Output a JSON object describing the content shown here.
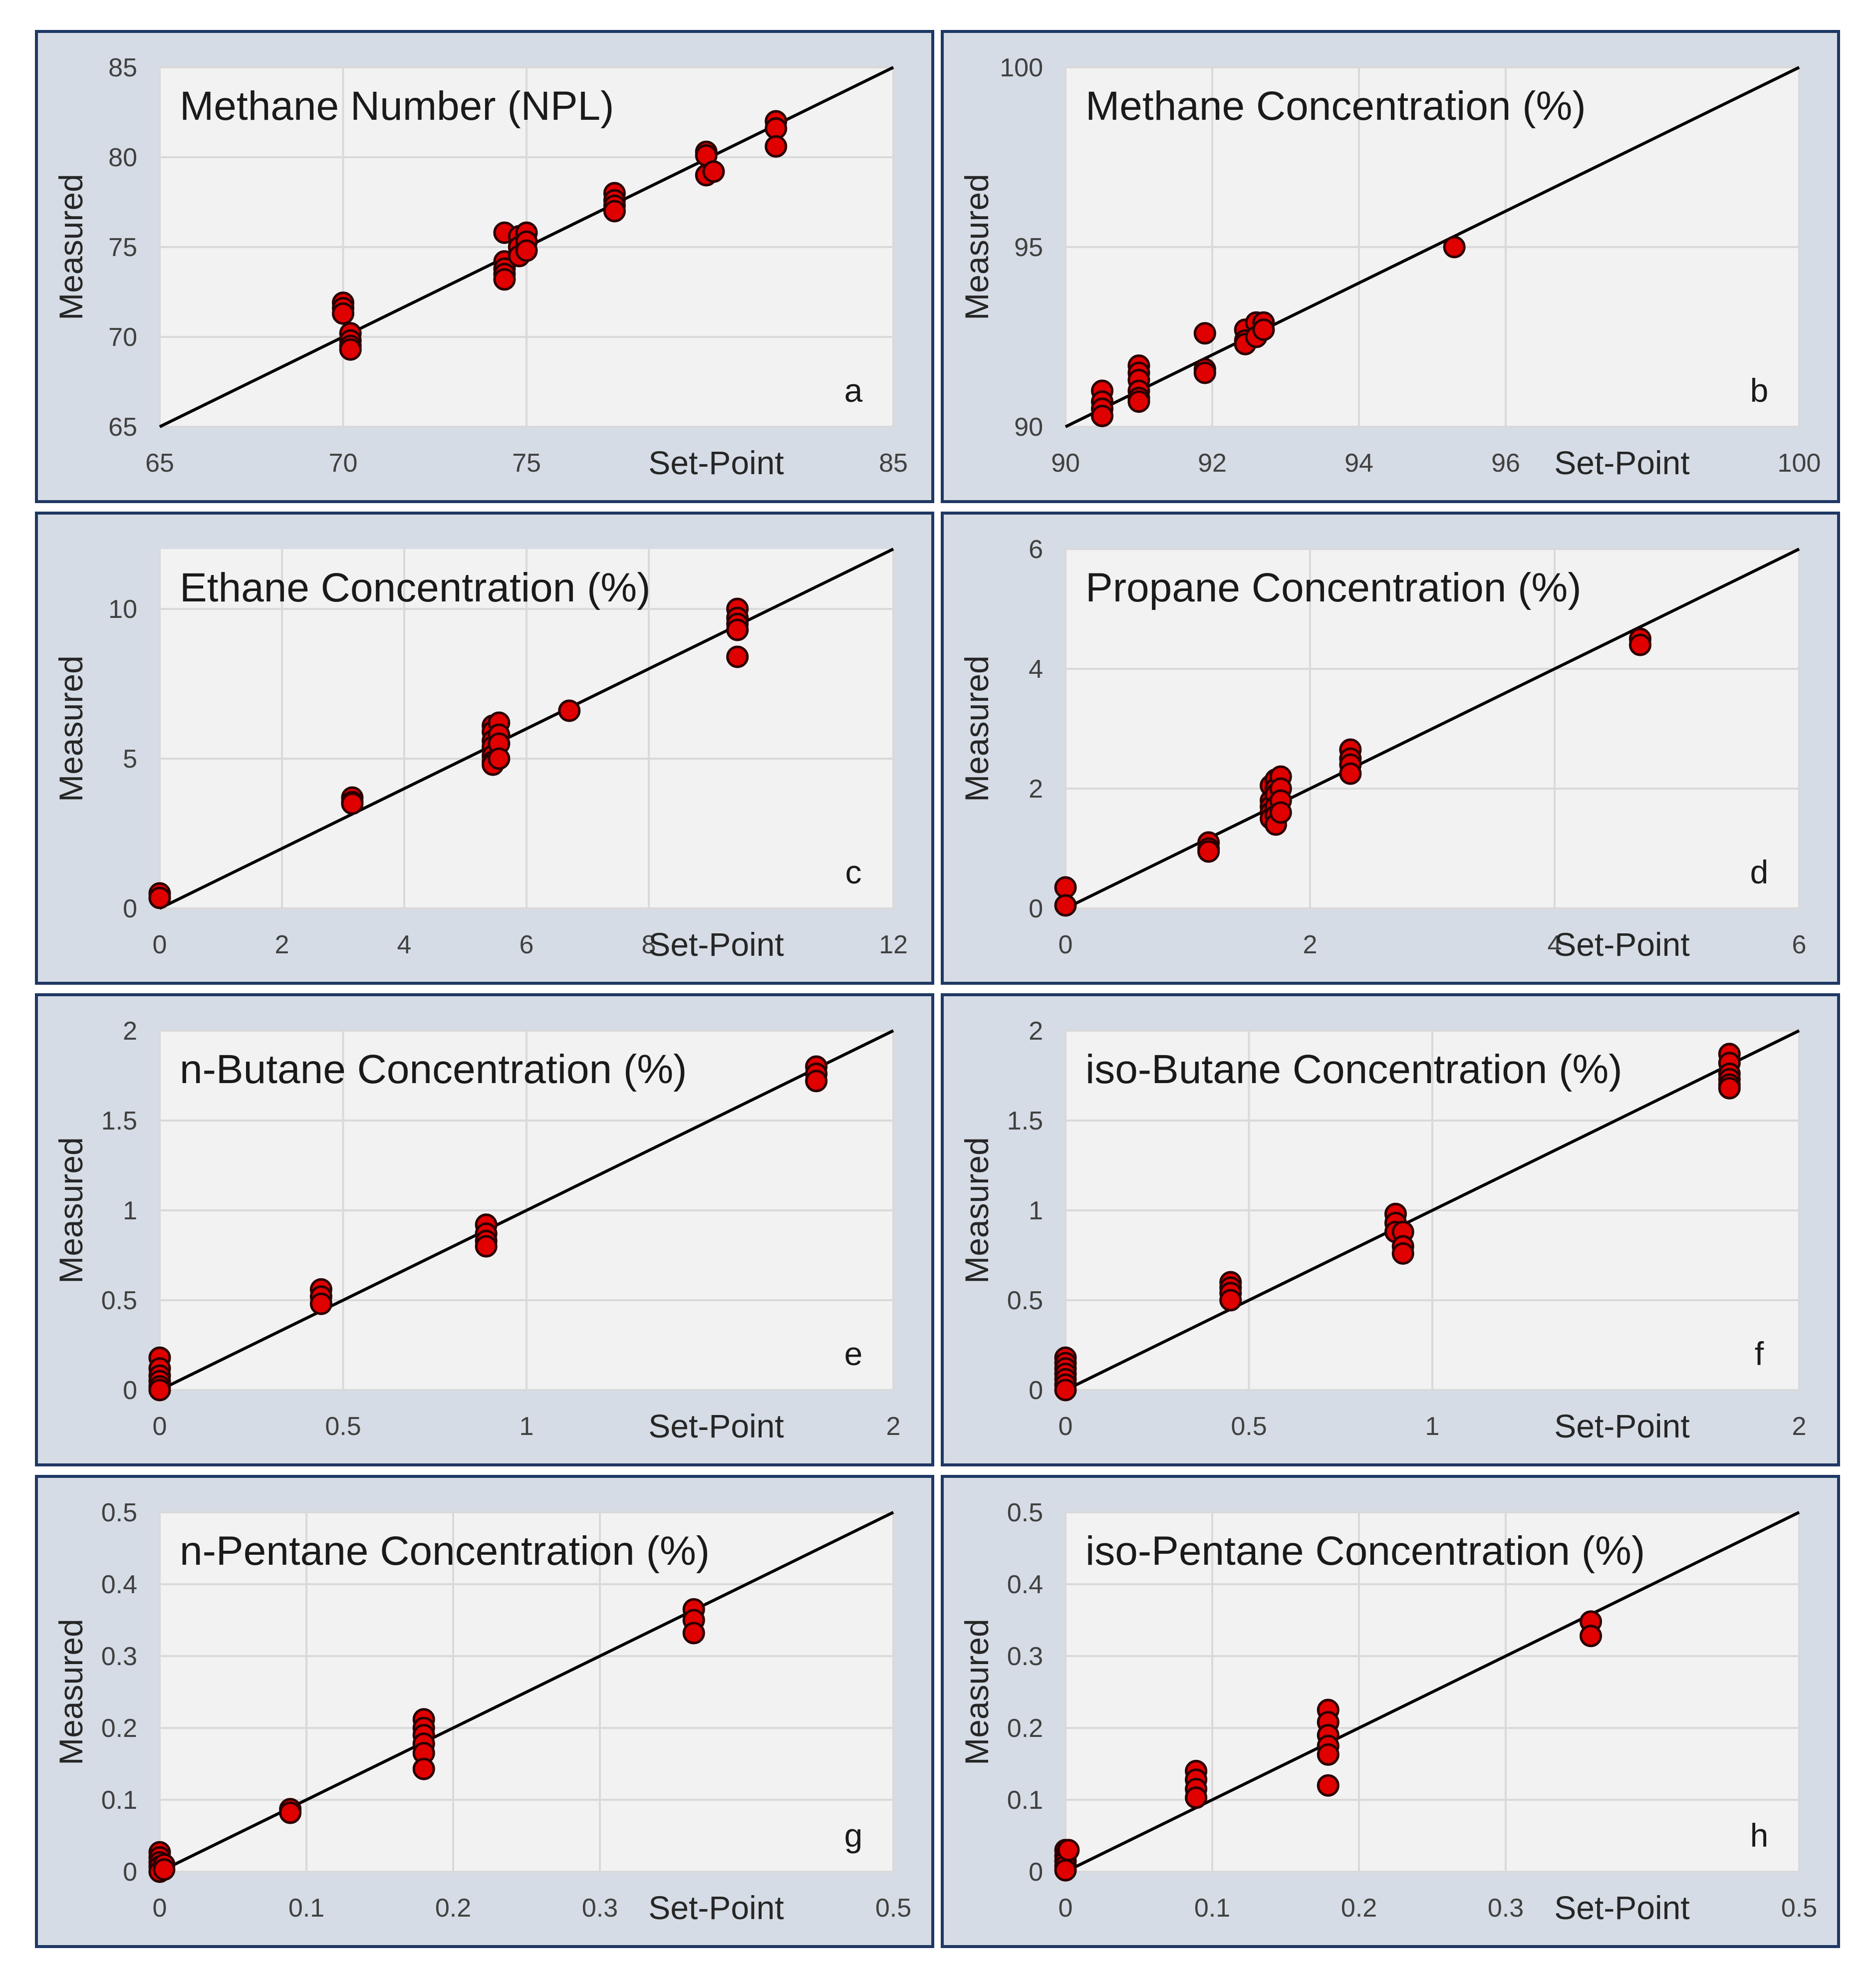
{
  "chart_data": [
    {
      "type": "scatter",
      "letter": "a",
      "title": "Methane Number (NPL)",
      "xlabel": "Set-Point",
      "ylabel": "Measured",
      "xlim": [
        65,
        85
      ],
      "ylim": [
        65,
        85
      ],
      "xticks": [
        65,
        70,
        75,
        85
      ],
      "yticks": [
        65,
        70,
        75,
        80,
        85
      ],
      "grid": true,
      "series": [
        {
          "name": "Measured vs Set-Point",
          "x": [
            70.0,
            70.0,
            70.0,
            70.2,
            70.2,
            70.2,
            70.2,
            74.4,
            74.4,
            74.4,
            74.4,
            74.4,
            74.8,
            74.8,
            74.8,
            75.0,
            75.0,
            75.0,
            77.4,
            77.4,
            77.4,
            77.4,
            79.9,
            79.9,
            79.9,
            80.1,
            81.8,
            81.8,
            81.8
          ],
          "y": [
            71.9,
            71.6,
            71.3,
            70.2,
            69.8,
            69.5,
            69.3,
            75.8,
            74.2,
            73.8,
            73.5,
            73.2,
            75.6,
            75.0,
            74.5,
            75.8,
            75.3,
            74.8,
            78.0,
            77.6,
            77.3,
            77.0,
            80.3,
            80.1,
            79.0,
            79.2,
            82.0,
            81.6,
            80.6
          ]
        }
      ],
      "reference_line": [
        [
          65,
          65
        ],
        [
          85,
          85
        ]
      ]
    },
    {
      "type": "scatter",
      "letter": "b",
      "title": "Methane Concentration (%)",
      "xlabel": "Set-Point",
      "ylabel": "Measured",
      "xlim": [
        90,
        100
      ],
      "ylim": [
        90,
        100
      ],
      "xticks": [
        90,
        92,
        94,
        96,
        100
      ],
      "yticks": [
        90,
        95,
        100
      ],
      "grid": true,
      "series": [
        {
          "name": "Measured vs Set-Point",
          "x": [
            90.5,
            90.5,
            90.5,
            90.5,
            91.0,
            91.0,
            91.0,
            91.0,
            91.0,
            91.0,
            91.9,
            91.9,
            91.9,
            92.45,
            92.45,
            92.45,
            92.6,
            92.6,
            92.7,
            92.7,
            95.3
          ],
          "y": [
            91.0,
            90.7,
            90.5,
            90.3,
            91.7,
            91.5,
            91.3,
            91.0,
            90.8,
            90.7,
            92.6,
            91.6,
            91.5,
            92.7,
            92.4,
            92.3,
            92.9,
            92.5,
            92.9,
            92.7,
            95.0
          ]
        }
      ],
      "reference_line": [
        [
          90,
          90
        ],
        [
          100,
          100
        ]
      ]
    },
    {
      "type": "scatter",
      "letter": "c",
      "title": "Ethane Concentration (%)",
      "xlabel": "Set-Point",
      "ylabel": "Measured",
      "xlim": [
        0,
        12
      ],
      "ylim": [
        0,
        12
      ],
      "xticks": [
        0,
        2,
        4,
        6,
        8,
        12
      ],
      "yticks": [
        0,
        5,
        10
      ],
      "grid": true,
      "series": [
        {
          "name": "Measured vs Set-Point",
          "x": [
            0.0,
            0.0,
            3.15,
            3.15,
            3.15,
            5.45,
            5.45,
            5.45,
            5.45,
            5.45,
            5.45,
            5.45,
            5.55,
            5.55,
            5.55,
            5.55,
            6.7,
            9.45,
            9.45,
            9.45,
            9.45,
            9.45
          ],
          "y": [
            0.5,
            0.35,
            3.7,
            3.55,
            3.5,
            6.1,
            5.9,
            5.6,
            5.4,
            5.1,
            4.9,
            4.8,
            6.2,
            5.8,
            5.5,
            5.0,
            6.6,
            10.0,
            9.7,
            9.5,
            9.3,
            8.4
          ]
        }
      ],
      "reference_line": [
        [
          0,
          0
        ],
        [
          12,
          12
        ]
      ]
    },
    {
      "type": "scatter",
      "letter": "d",
      "title": "Propane Concentration (%)",
      "xlabel": "Set-Point",
      "ylabel": "Measured",
      "xlim": [
        0,
        6
      ],
      "ylim": [
        0,
        6
      ],
      "xticks": [
        0,
        2,
        4,
        6
      ],
      "yticks": [
        0,
        2,
        4,
        6
      ],
      "grid": true,
      "series": [
        {
          "name": "Measured vs Set-Point",
          "x": [
            0.0,
            0.0,
            1.17,
            1.17,
            1.17,
            1.68,
            1.68,
            1.68,
            1.68,
            1.68,
            1.72,
            1.72,
            1.72,
            1.72,
            1.72,
            1.72,
            1.76,
            1.76,
            1.76,
            1.76,
            2.33,
            2.33,
            2.33,
            2.33,
            4.7,
            4.7
          ],
          "y": [
            0.35,
            0.05,
            1.1,
            1.0,
            0.95,
            2.05,
            1.8,
            1.7,
            1.6,
            1.5,
            2.15,
            2.0,
            1.9,
            1.7,
            1.55,
            1.4,
            2.2,
            2.0,
            1.8,
            1.6,
            2.65,
            2.5,
            2.4,
            2.25,
            4.5,
            4.4
          ]
        }
      ],
      "reference_line": [
        [
          0,
          0
        ],
        [
          6,
          6
        ]
      ]
    },
    {
      "type": "scatter",
      "letter": "e",
      "title": "n-Butane Concentration (%)",
      "xlabel": "Set-Point",
      "ylabel": "Measured",
      "xlim": [
        0,
        2
      ],
      "ylim": [
        0,
        2
      ],
      "xticks": [
        0,
        0.5,
        1,
        2
      ],
      "yticks": [
        0,
        0.5,
        1,
        1.5,
        2
      ],
      "grid": true,
      "series": [
        {
          "name": "Measured vs Set-Point",
          "x": [
            0.0,
            0.0,
            0.0,
            0.0,
            0.0,
            0.0,
            0.44,
            0.44,
            0.44,
            0.89,
            0.89,
            0.89,
            0.89,
            1.79,
            1.79,
            1.79
          ],
          "y": [
            0.18,
            0.12,
            0.08,
            0.05,
            0.02,
            0.0,
            0.56,
            0.52,
            0.48,
            0.92,
            0.87,
            0.83,
            0.8,
            1.8,
            1.76,
            1.72
          ]
        }
      ],
      "reference_line": [
        [
          0,
          0
        ],
        [
          2,
          2
        ]
      ]
    },
    {
      "type": "scatter",
      "letter": "f",
      "title": "iso-Butane Concentration (%)",
      "xlabel": "Set-Point",
      "ylabel": "Measured",
      "xlim": [
        0,
        2
      ],
      "ylim": [
        0,
        2
      ],
      "xticks": [
        0,
        0.5,
        1,
        2
      ],
      "yticks": [
        0,
        0.5,
        1,
        1.5,
        2
      ],
      "grid": true,
      "series": [
        {
          "name": "Measured vs Set-Point",
          "x": [
            0.0,
            0.0,
            0.0,
            0.0,
            0.0,
            0.0,
            0.0,
            0.45,
            0.45,
            0.45,
            0.45,
            0.9,
            0.9,
            0.9,
            0.92,
            0.92,
            0.92,
            1.81,
            1.81,
            1.81,
            1.81,
            1.81,
            1.81
          ],
          "y": [
            0.18,
            0.15,
            0.12,
            0.09,
            0.06,
            0.03,
            0.0,
            0.6,
            0.57,
            0.54,
            0.5,
            0.98,
            0.93,
            0.88,
            0.88,
            0.8,
            0.76,
            1.87,
            1.82,
            1.76,
            1.73,
            1.7,
            1.68
          ]
        }
      ],
      "reference_line": [
        [
          0,
          0
        ],
        [
          2,
          2
        ]
      ]
    },
    {
      "type": "scatter",
      "letter": "g",
      "title": "n-Pentane Concentration (%)",
      "xlabel": "Set-Point",
      "ylabel": "Measured",
      "xlim": [
        0,
        0.5
      ],
      "ylim": [
        0,
        0.5
      ],
      "xticks": [
        0,
        0.1,
        0.2,
        0.3,
        0.5
      ],
      "yticks": [
        0,
        0.1,
        0.2,
        0.3,
        0.4,
        0.5
      ],
      "grid": true,
      "series": [
        {
          "name": "Measured vs Set-Point",
          "x": [
            0.0,
            0.0,
            0.0,
            0.0,
            0.0,
            0.003,
            0.003,
            0.089,
            0.089,
            0.18,
            0.18,
            0.18,
            0.18,
            0.18,
            0.18,
            0.364,
            0.364,
            0.364
          ],
          "y": [
            0.027,
            0.02,
            0.013,
            0.007,
            0.0,
            0.01,
            0.003,
            0.087,
            0.082,
            0.212,
            0.2,
            0.19,
            0.178,
            0.165,
            0.143,
            0.365,
            0.35,
            0.332
          ]
        }
      ],
      "reference_line": [
        [
          0,
          0
        ],
        [
          0.5,
          0.5
        ]
      ]
    },
    {
      "type": "scatter",
      "letter": "h",
      "title": "iso-Pentane Concentration (%)",
      "xlabel": "Set-Point",
      "ylabel": "Measured",
      "xlim": [
        0,
        0.5
      ],
      "ylim": [
        0,
        0.5
      ],
      "xticks": [
        0,
        0.1,
        0.2,
        0.3,
        0.5
      ],
      "yticks": [
        0,
        0.1,
        0.2,
        0.3,
        0.4,
        0.5
      ],
      "grid": true,
      "series": [
        {
          "name": "Measured vs Set-Point",
          "x": [
            0.0,
            0.0,
            0.0,
            0.0,
            0.0,
            0.002,
            0.089,
            0.089,
            0.089,
            0.089,
            0.179,
            0.179,
            0.179,
            0.179,
            0.179,
            0.179,
            0.358,
            0.358
          ],
          "y": [
            0.03,
            0.022,
            0.015,
            0.008,
            0.002,
            0.03,
            0.14,
            0.128,
            0.115,
            0.103,
            0.225,
            0.208,
            0.19,
            0.175,
            0.163,
            0.12,
            0.348,
            0.328
          ]
        }
      ],
      "reference_line": [
        [
          0,
          0
        ],
        [
          0.5,
          0.5
        ]
      ]
    }
  ]
}
